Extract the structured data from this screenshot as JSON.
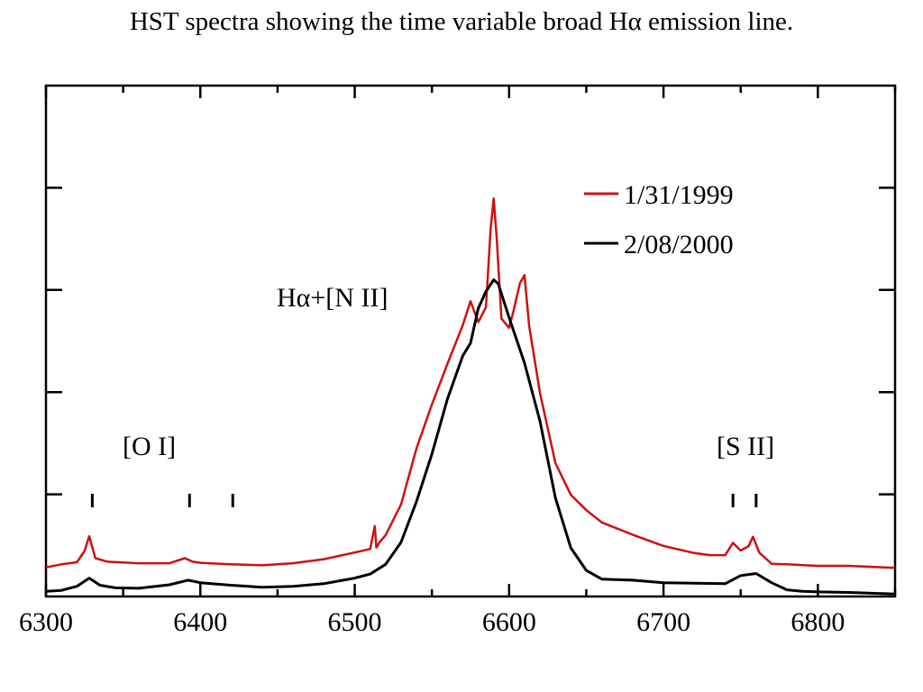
{
  "chart_data": {
    "type": "line",
    "title": "HST spectra showing the time variable broad Hα emission line.",
    "xlabel": "",
    "ylabel": "",
    "xlim": [
      6300,
      6850
    ],
    "ylim": [
      0,
      100
    ],
    "xticks": [
      6300,
      6400,
      6500,
      6600,
      6700,
      6800
    ],
    "grid": false,
    "legend": {
      "placement": "top-right"
    },
    "annotations": [
      {
        "text": "Hα+[N II]",
        "x": 6523,
        "y": 53
      },
      {
        "text": "[O I]",
        "x": 6335,
        "y": 22
      },
      {
        "text": "[S II]",
        "x": 6785,
        "y": 22
      }
    ],
    "line_markers": [
      6330,
      6393,
      6421,
      6745,
      6760
    ],
    "series": [
      {
        "name": "1/31/1999",
        "color": "#cc1111",
        "x": [
          6300,
          6310,
          6320,
          6325,
          6328,
          6332,
          6340,
          6360,
          6380,
          6390,
          6395,
          6400,
          6420,
          6440,
          6460,
          6480,
          6500,
          6510,
          6513,
          6514,
          6515,
          6516,
          6520,
          6530,
          6540,
          6550,
          6560,
          6570,
          6575,
          6580,
          6585,
          6588,
          6590,
          6592,
          6595,
          6600,
          6603,
          6607,
          6610,
          6613,
          6620,
          6630,
          6640,
          6650,
          6660,
          6680,
          6700,
          6720,
          6730,
          6740,
          6745,
          6750,
          6755,
          6758,
          6762,
          6770,
          6780,
          6800,
          6820,
          6850
        ],
        "y": [
          5.7,
          6.3,
          6.7,
          8.9,
          11.8,
          7.5,
          6.8,
          6.5,
          6.5,
          7.5,
          6.8,
          6.6,
          6.3,
          6.1,
          6.5,
          7.3,
          8.6,
          9.3,
          13.8,
          9.6,
          10.0,
          10.6,
          12.0,
          18.0,
          29.0,
          37.6,
          45.5,
          53.1,
          57.8,
          53.7,
          56.6,
          71.9,
          77.9,
          70.1,
          54.4,
          52.6,
          56.1,
          61.3,
          62.9,
          52.9,
          39.8,
          26.1,
          19.9,
          16.9,
          14.5,
          12.1,
          9.9,
          8.5,
          8.1,
          8.1,
          10.5,
          9.0,
          9.8,
          11.7,
          8.6,
          6.4,
          6.3,
          6.0,
          6.0,
          5.6
        ]
      },
      {
        "name": "2/08/2000",
        "color": "#000000",
        "x": [
          6300,
          6310,
          6320,
          6328,
          6335,
          6345,
          6360,
          6380,
          6392,
          6400,
          6420,
          6440,
          6460,
          6480,
          6500,
          6510,
          6520,
          6530,
          6540,
          6550,
          6560,
          6570,
          6575,
          6580,
          6585,
          6590,
          6593,
          6600,
          6610,
          6620,
          6630,
          6640,
          6650,
          6660,
          6680,
          6700,
          6720,
          6740,
          6750,
          6760,
          6770,
          6780,
          6790,
          6800,
          6820,
          6850
        ],
        "y": [
          1.0,
          1.2,
          2.0,
          3.6,
          2.2,
          1.7,
          1.6,
          2.3,
          3.2,
          2.7,
          2.2,
          1.8,
          2.0,
          2.5,
          3.6,
          4.4,
          6.3,
          10.6,
          18.6,
          27.9,
          38.6,
          47.1,
          49.6,
          56.4,
          59.7,
          62.0,
          61.2,
          54.6,
          45.7,
          34.3,
          19.3,
          9.5,
          5.1,
          3.4,
          3.2,
          2.7,
          2.6,
          2.5,
          4.1,
          4.5,
          2.7,
          1.3,
          1.0,
          0.9,
          0.8,
          0.5
        ]
      }
    ]
  }
}
